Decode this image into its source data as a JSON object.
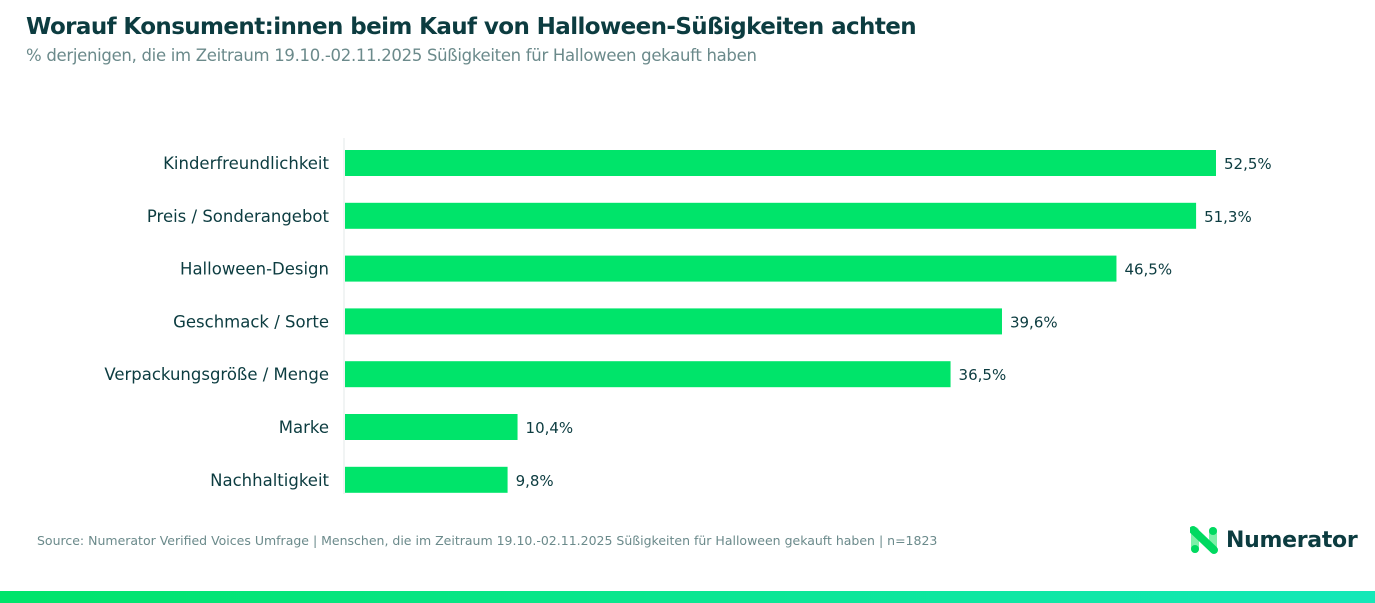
{
  "title": "Worauf Konsument:innen beim Kauf von Halloween-Süßigkeiten achten",
  "subtitle": "% derjenigen, die im Zeitraum 19.10.-02.11.2025 Süßigkeiten für Halloween gekauft haben",
  "source": "Source: Numerator Verified Voices Umfrage | Menschen, die im Zeitraum 19.10.-02.11.2025 Süßigkeiten für Halloween gekauft haben | n=1823",
  "logo": {
    "text": "Numerator",
    "icon": "numerator-n-logo-icon"
  },
  "colors": {
    "bar": "#00e46a",
    "text": "#0c3c40",
    "muted": "#6b8a8b"
  },
  "chart_data": {
    "type": "bar",
    "orientation": "horizontal",
    "categories": [
      "Kinderfreundlichkeit",
      "Preis / Sonderangebot",
      "Halloween-Design",
      "Geschmack / Sorte",
      "Verpackungsgröße / Menge",
      "Marke",
      "Nachhaltigkeit"
    ],
    "values": [
      52.5,
      51.3,
      46.5,
      39.6,
      36.5,
      10.4,
      9.8
    ],
    "data_labels": [
      "52,5%",
      "51,3%",
      "46,5%",
      "39,6%",
      "36,5%",
      "10,4%",
      "9,8%"
    ],
    "xlim": [
      0,
      52.5
    ],
    "grid": false,
    "legend": "none"
  }
}
